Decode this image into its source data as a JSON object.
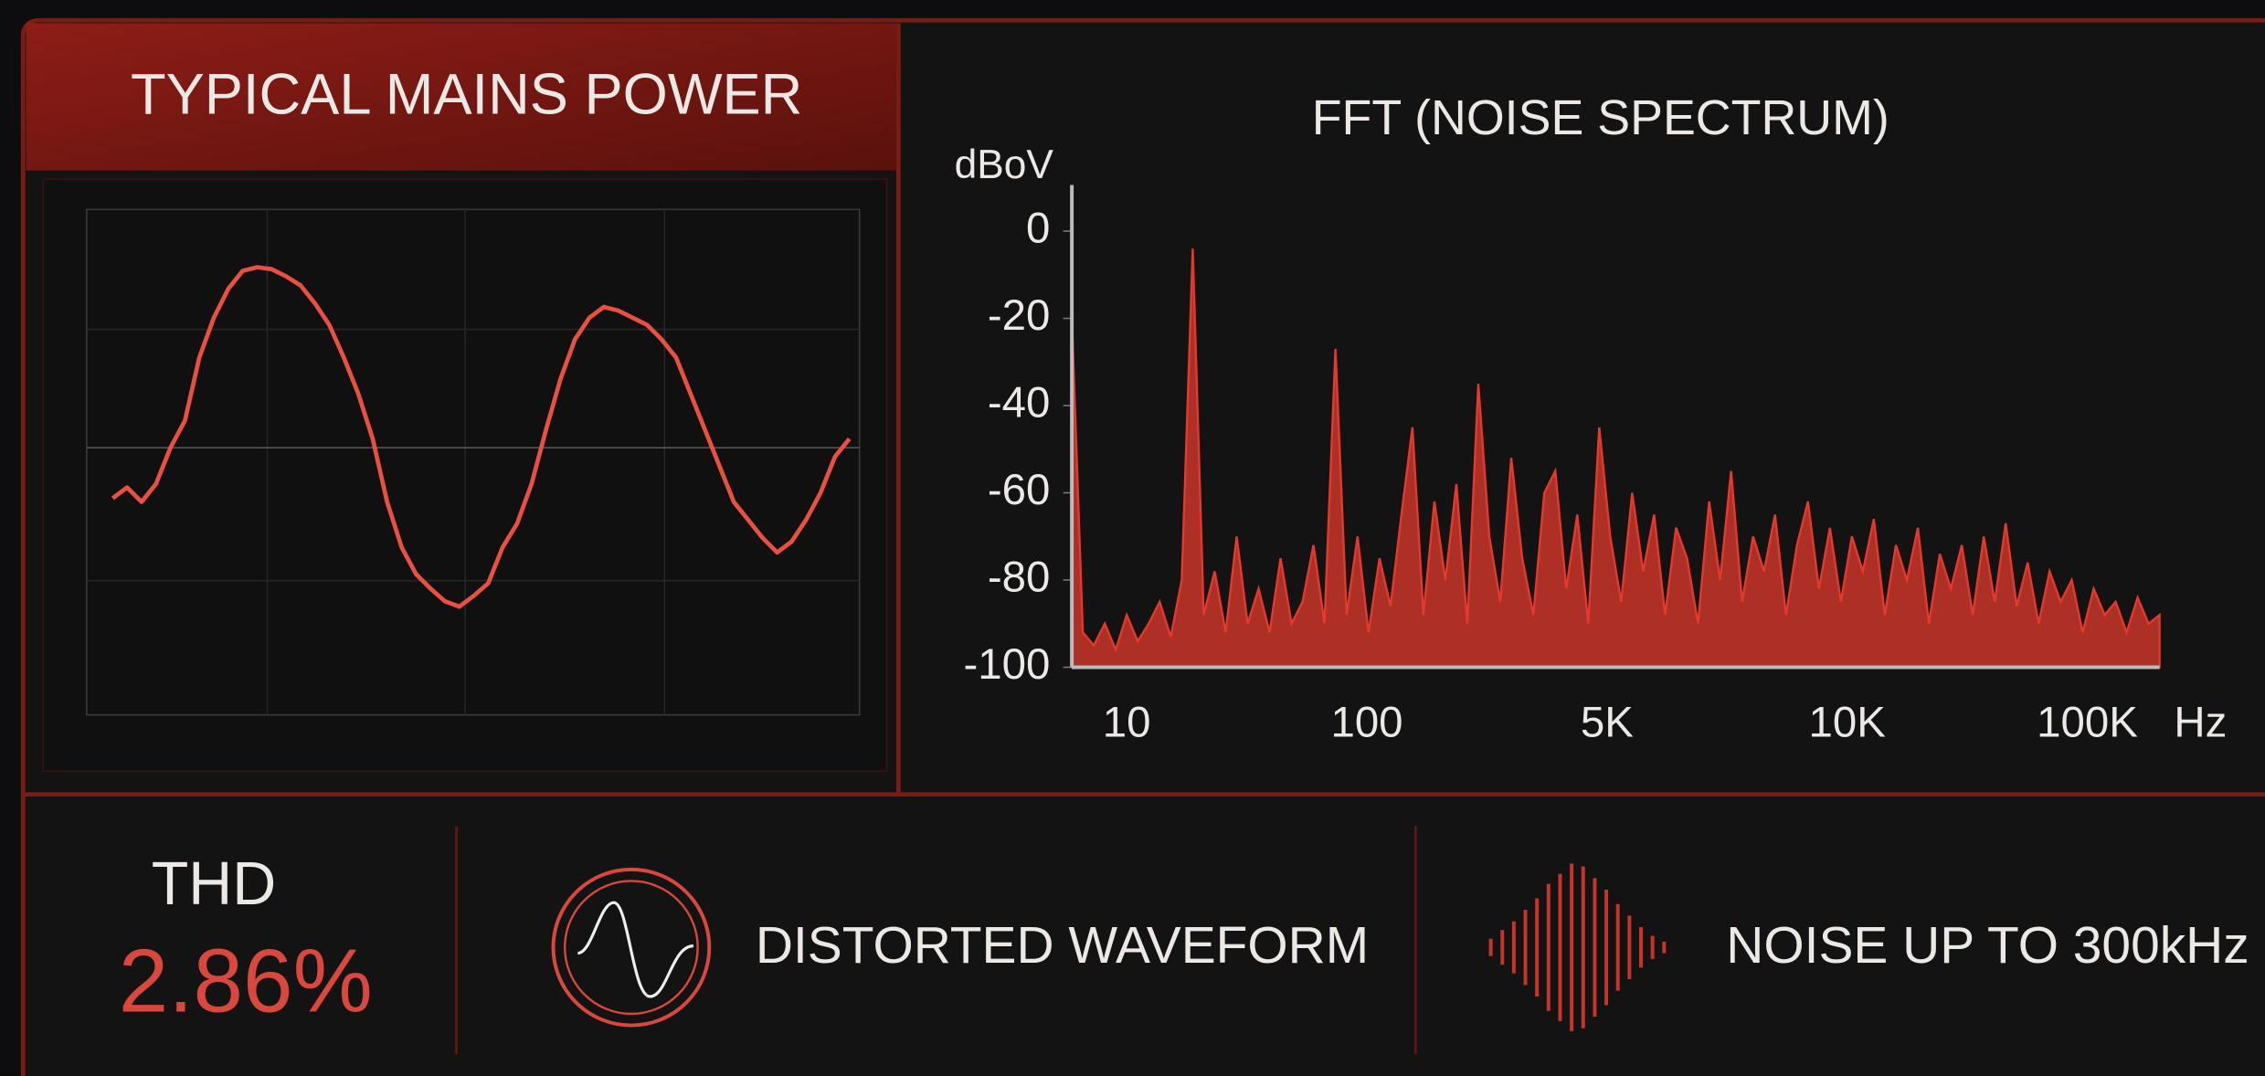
{
  "chart_data": [
    {
      "type": "line",
      "title": "TYPICAL MAINS POWER",
      "color": "#e8503f",
      "ylim": [
        -1.48,
        1.48
      ],
      "values": [
        -0.28,
        -0.22,
        -0.3,
        -0.2,
        0.0,
        0.15,
        0.5,
        0.72,
        0.88,
        0.98,
        1.0,
        0.99,
        0.95,
        0.9,
        0.8,
        0.68,
        0.5,
        0.3,
        0.05,
        -0.3,
        -0.55,
        -0.7,
        -0.78,
        -0.85,
        -0.88,
        -0.82,
        -0.75,
        -0.55,
        -0.42,
        -0.2,
        0.1,
        0.38,
        0.6,
        0.72,
        0.78,
        0.76,
        0.72,
        0.68,
        0.6,
        0.5,
        0.3,
        0.1,
        -0.1,
        -0.3,
        -0.4,
        -0.5,
        -0.58,
        -0.52,
        -0.4,
        -0.25,
        -0.05,
        0.05
      ]
    },
    {
      "type": "spectrum",
      "title": "FFT (NOISE SPECTRUM)",
      "y_label": "dBoV",
      "color": "#e23a2c",
      "ylim": [
        -100,
        0
      ],
      "yticks": [
        0,
        -20,
        -40,
        -60,
        -80,
        -100
      ],
      "x_labels": [
        "10",
        "100",
        "5K",
        "10K",
        "100K"
      ],
      "x_unit": "Hz",
      "values": [
        -20,
        -92,
        -95,
        -90,
        -96,
        -88,
        -94,
        -90,
        -85,
        -93,
        -80,
        -4,
        -88,
        -78,
        -92,
        -70,
        -90,
        -82,
        -92,
        -75,
        -90,
        -85,
        -72,
        -90,
        -27,
        -88,
        -70,
        -92,
        -75,
        -86,
        -65,
        -45,
        -88,
        -62,
        -80,
        -58,
        -90,
        -35,
        -70,
        -85,
        -52,
        -75,
        -88,
        -60,
        -55,
        -82,
        -65,
        -90,
        -45,
        -70,
        -85,
        -60,
        -78,
        -65,
        -88,
        -68,
        -75,
        -90,
        -62,
        -80,
        -55,
        -85,
        -70,
        -78,
        -65,
        -88,
        -72,
        -62,
        -82,
        -68,
        -85,
        -70,
        -78,
        -66,
        -88,
        -72,
        -80,
        -68,
        -90,
        -74,
        -82,
        -72,
        -88,
        -70,
        -85,
        -67,
        -86,
        -76,
        -90,
        -78,
        -85,
        -80,
        -92,
        -82,
        -88,
        -85,
        -92,
        -84,
        -90,
        -88
      ]
    }
  ],
  "footer": {
    "thd_label": "THD",
    "thd_value": "2.86%",
    "feature_1": "DISTORTED WAVEFORM",
    "feature_2": "NOISE UP TO 300kHz"
  }
}
